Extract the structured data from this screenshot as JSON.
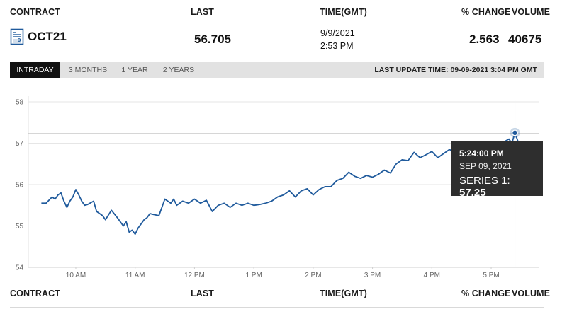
{
  "header": {
    "contract": "CONTRACT",
    "last": "LAST",
    "time": "TIME(GMT)",
    "pct_change": "% CHANGE",
    "volume": "VOLUME"
  },
  "quote": {
    "contract": "OCT21",
    "last": "56.705",
    "date": "9/9/2021",
    "time": "2:53 PM",
    "pct_change": "2.563",
    "volume": "40675"
  },
  "tabs": [
    {
      "label": "INTRADAY",
      "active": true
    },
    {
      "label": "3 MONTHS",
      "active": false
    },
    {
      "label": "1 YEAR",
      "active": false
    },
    {
      "label": "2 YEARS",
      "active": false
    }
  ],
  "last_update": "LAST UPDATE TIME: 09-09-2021 3:04 PM GMT",
  "tooltip": {
    "time": "5:24:00 PM",
    "date": "SEP 09, 2021",
    "series_label": "SERIES 1:",
    "value": "57.25"
  },
  "footer_header": {
    "contract": "CONTRACT",
    "last": "LAST",
    "time": "TIME(GMT)",
    "pct_change": "% CHANGE",
    "volume": "VOLUME"
  },
  "colors": {
    "line": "#1f5a9c",
    "tab_active": "#111111",
    "tooltip_bg": "#2e2e2e",
    "tabbar_bg": "#e2e2e2"
  },
  "chart_data": {
    "type": "line",
    "title": "",
    "xlabel": "",
    "ylabel": "",
    "ylim": [
      54,
      58
    ],
    "yticks": [
      54,
      55,
      56,
      57,
      58
    ],
    "xlim": [
      9.2,
      17.8
    ],
    "xticks": [
      {
        "x": 10,
        "label": "10 AM"
      },
      {
        "x": 11,
        "label": "11 AM"
      },
      {
        "x": 12,
        "label": "12 PM"
      },
      {
        "x": 13,
        "label": "1 PM"
      },
      {
        "x": 14,
        "label": "2 PM"
      },
      {
        "x": 15,
        "label": "3 PM"
      },
      {
        "x": 16,
        "label": "4 PM"
      },
      {
        "x": 17,
        "label": "5 PM"
      }
    ],
    "grid": true,
    "highlight": {
      "x": 17.4,
      "y": 57.25
    },
    "series": [
      {
        "x": [
          9.42,
          9.5,
          9.6,
          9.65,
          9.7,
          9.75,
          9.8,
          9.85,
          9.9,
          9.95,
          10.0,
          10.05,
          10.1,
          10.15,
          10.2,
          10.3,
          10.35,
          10.45,
          10.5,
          10.6,
          10.7,
          10.8,
          10.85,
          10.9,
          10.95,
          11.0,
          11.05,
          11.1,
          11.15,
          11.2,
          11.25,
          11.3,
          11.4,
          11.5,
          11.6,
          11.65,
          11.7,
          11.8,
          11.9,
          12.0,
          12.1,
          12.2,
          12.3,
          12.4,
          12.5,
          12.6,
          12.7,
          12.8,
          12.9,
          13.0,
          13.1,
          13.2,
          13.3,
          13.4,
          13.5,
          13.6,
          13.7,
          13.8,
          13.9,
          14.0,
          14.1,
          14.2,
          14.3,
          14.4,
          14.5,
          14.6,
          14.7,
          14.8,
          14.9,
          15.0,
          15.1,
          15.2,
          15.3,
          15.4,
          15.5,
          15.6,
          15.7,
          15.8,
          15.9,
          16.0,
          16.1,
          16.2,
          16.3,
          16.4,
          16.45,
          16.5,
          16.6,
          16.7,
          16.8,
          16.9,
          17.0,
          17.1,
          17.2,
          17.3,
          17.35,
          17.4,
          17.45
        ],
        "y": [
          55.55,
          55.55,
          55.7,
          55.65,
          55.75,
          55.8,
          55.6,
          55.45,
          55.6,
          55.7,
          55.88,
          55.75,
          55.6,
          55.5,
          55.52,
          55.6,
          55.35,
          55.25,
          55.15,
          55.38,
          55.2,
          55.0,
          55.1,
          54.85,
          54.9,
          54.8,
          54.95,
          55.05,
          55.15,
          55.2,
          55.3,
          55.28,
          55.25,
          55.65,
          55.55,
          55.65,
          55.5,
          55.6,
          55.55,
          55.65,
          55.55,
          55.62,
          55.35,
          55.5,
          55.55,
          55.45,
          55.55,
          55.5,
          55.55,
          55.5,
          55.52,
          55.55,
          55.6,
          55.7,
          55.75,
          55.85,
          55.7,
          55.85,
          55.9,
          55.75,
          55.88,
          55.95,
          55.95,
          56.1,
          56.15,
          56.3,
          56.2,
          56.15,
          56.22,
          56.18,
          56.25,
          56.35,
          56.28,
          56.5,
          56.6,
          56.58,
          56.78,
          56.65,
          56.72,
          56.8,
          56.65,
          56.75,
          56.85,
          56.72,
          56.83,
          56.9,
          56.85,
          56.95,
          56.9,
          56.98,
          57.0,
          56.95,
          57.02,
          57.1,
          57.0,
          57.25,
          57.05
        ]
      }
    ]
  }
}
